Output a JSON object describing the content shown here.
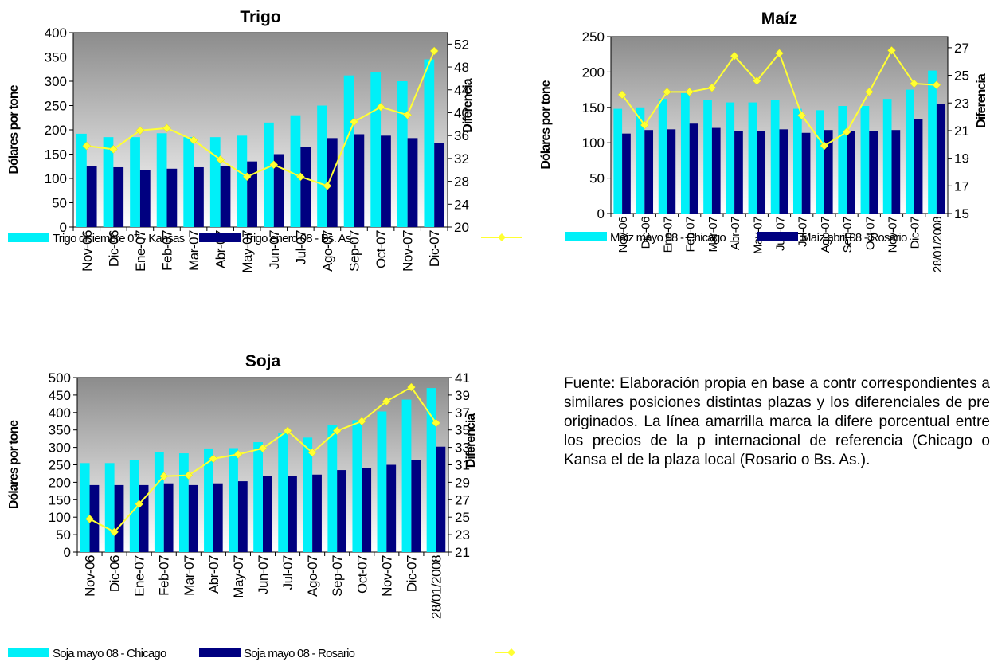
{
  "colors": {
    "light_bar": "#00f0f8",
    "dark_bar": "#000080",
    "line": "#ffff33",
    "plot_top": "#8c8c8c",
    "plot_bottom": "#ffffff"
  },
  "chart_data": [
    {
      "type": "bar",
      "title": "Trigo",
      "ylabel": "Dólares por tone",
      "y2label": "Diferencia",
      "categories": [
        "Nov-06",
        "Dic-06",
        "Ene-07",
        "Feb-07",
        "Mar-07",
        "Abr-07",
        "May-07",
        "Jun-07",
        "Jul-07",
        "Ago-07",
        "Sep-07",
        "Oct-07",
        "Nov-07",
        "Dic-07"
      ],
      "ylim": [
        0,
        400
      ],
      "yticks": [
        "0",
        "50",
        "100",
        "150",
        "200",
        "250",
        "300",
        "350",
        "400"
      ],
      "y2lim": [
        20,
        54
      ],
      "y2ticks": [
        "20",
        "24",
        "28",
        "32",
        "36",
        "40",
        "44",
        "48",
        "52"
      ],
      "series": [
        {
          "name": "Trigo diciembre 07 - Kansas",
          "kind": "bar",
          "values": [
            192,
            185,
            185,
            193,
            185,
            185,
            188,
            215,
            230,
            250,
            312,
            318,
            300,
            345
          ]
        },
        {
          "name": "Trigo enero 08 - Bs. As.",
          "kind": "bar",
          "values": [
            125,
            123,
            118,
            120,
            123,
            125,
            135,
            150,
            165,
            183,
            191,
            188,
            183,
            173
          ]
        },
        {
          "kind": "line",
          "axis": "y2",
          "values": [
            34.2,
            33.6,
            36.9,
            37.3,
            35.2,
            31.8,
            28.8,
            30.9,
            28.8,
            27.2,
            38.4,
            41.0,
            39.6,
            50.8
          ]
        }
      ],
      "legend_position": "bottom"
    },
    {
      "type": "bar",
      "title": "Maíz",
      "ylabel": "Dólares por tone",
      "y2label": "Diferencia",
      "categories": [
        "Nov-06",
        "Dic-06",
        "Ene-07",
        "Feb-07",
        "Mar-07",
        "Abr-07",
        "May-07",
        "Jun-07",
        "Jul-07",
        "Ago-07",
        "Sep-07",
        "Oct-07",
        "Nov-07",
        "Dic-07",
        "28/01/2008"
      ],
      "ylim": [
        0,
        250
      ],
      "yticks": [
        "0",
        "50",
        "100",
        "150",
        "200",
        "250"
      ],
      "y2lim": [
        15,
        27.8
      ],
      "y2ticks": [
        "15",
        "17",
        "19",
        "21",
        "23",
        "25",
        "27"
      ],
      "series": [
        {
          "name": "Maíz mayo 08 - Chicago",
          "kind": "bar",
          "values": [
            148,
            150,
            162,
            170,
            160,
            157,
            157,
            160,
            148,
            146,
            152,
            152,
            162,
            175,
            202
          ]
        },
        {
          "name": "Maíz abril 08 - Rosario",
          "kind": "bar",
          "values": [
            113,
            118,
            119,
            127,
            121,
            116,
            117,
            119,
            114,
            118,
            116,
            116,
            118,
            133,
            155
          ]
        },
        {
          "kind": "line",
          "axis": "y2",
          "values": [
            23.6,
            21.4,
            23.8,
            23.8,
            24.1,
            26.4,
            24.6,
            26.6,
            22.1,
            19.9,
            20.9,
            23.8,
            26.8,
            24.4,
            24.3
          ]
        }
      ],
      "legend_position": "bottom"
    },
    {
      "type": "bar",
      "title": "Soja",
      "ylabel": "Dólares por tone",
      "y2label": "Diferencia",
      "categories": [
        "Nov-06",
        "Dic-06",
        "Ene-07",
        "Feb-07",
        "Mar-07",
        "Abr-07",
        "May-07",
        "Jun-07",
        "Jul-07",
        "Ago-07",
        "Sep-07",
        "Oct-07",
        "Nov-07",
        "Dic-07",
        "28/01/2008"
      ],
      "ylim": [
        0,
        500
      ],
      "yticks": [
        "0",
        "50",
        "100",
        "150",
        "200",
        "250",
        "300",
        "350",
        "400",
        "450",
        "500"
      ],
      "y2lim": [
        21,
        41
      ],
      "y2ticks": [
        "21",
        "23",
        "25",
        "27",
        "29",
        "31",
        "33",
        "35",
        "37",
        "39",
        "41"
      ],
      "series": [
        {
          "name": "Soja mayo 08 - Chicago",
          "kind": "bar",
          "values": [
            255,
            255,
            263,
            287,
            283,
            297,
            298,
            315,
            342,
            328,
            365,
            378,
            403,
            437,
            470
          ]
        },
        {
          "name": "Soja mayo 08 - Rosario",
          "kind": "bar",
          "values": [
            192,
            192,
            192,
            197,
            192,
            197,
            203,
            217,
            217,
            222,
            235,
            240,
            250,
            263,
            302
          ]
        },
        {
          "kind": "line",
          "axis": "y2",
          "values": [
            24.8,
            23.3,
            26.5,
            29.7,
            29.8,
            31.7,
            32.2,
            32.9,
            34.9,
            32.4,
            34.9,
            36.0,
            38.3,
            39.9,
            35.8
          ]
        }
      ],
      "legend_position": "bottom"
    }
  ],
  "source_note": "Fuente: Elaboración propia en base a contr correspondientes a similares posiciones distintas plazas y los diferenciales de pre originados. La línea amarrilla marca la difere porcentual entre los precios de la p internacional de referencia (Chicago o Kansa el de la plaza local (Rosario o Bs. As.)."
}
